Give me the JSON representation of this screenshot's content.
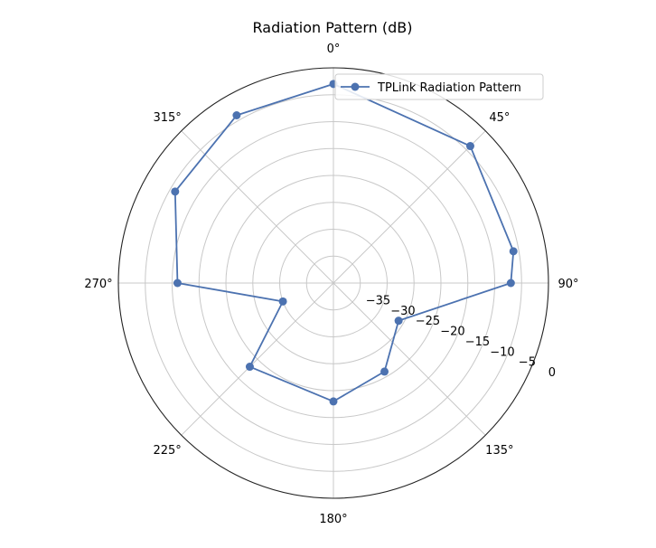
{
  "chart_data": {
    "type": "line",
    "subtype": "polar",
    "title": "Radiation Pattern (dB)",
    "theta_unit": "degrees",
    "theta_zero_location": "top",
    "theta_direction": "clockwise",
    "theta_tick_labels": [
      "0°",
      "45°",
      "90°",
      "135°",
      "180°",
      "225°",
      "270°",
      "315°"
    ],
    "r_tick_labels": [
      "−35",
      "−30",
      "−25",
      "−20",
      "−15",
      "−10",
      "−5",
      "0"
    ],
    "r_ticks": [
      -35,
      -30,
      -25,
      -20,
      -15,
      -10,
      -5,
      0
    ],
    "rlim": [
      -40,
      0
    ],
    "grid": true,
    "legend_position": "upper-right",
    "line_color": "#4c72b0",
    "series": [
      {
        "name": "TPLink Radiation Pattern",
        "theta": [
          0,
          45,
          80,
          90,
          120,
          150,
          180,
          225,
          250,
          270,
          300,
          330,
          0
        ],
        "r": [
          -3,
          -4,
          -6,
          -7,
          -26,
          -21,
          -18,
          -18,
          -30,
          -11,
          -6,
          -4,
          -3
        ],
        "marker": "circle"
      }
    ]
  }
}
